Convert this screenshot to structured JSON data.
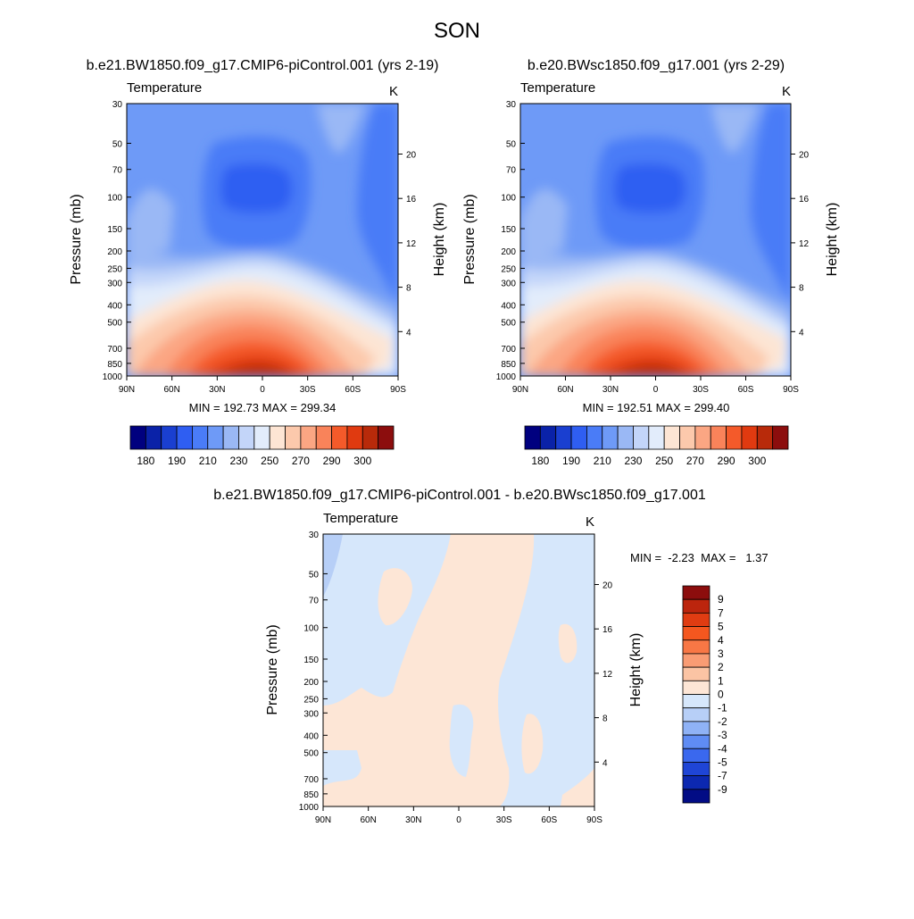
{
  "chart_data": {
    "main_title": "SON",
    "panels": [
      {
        "type": "contour",
        "title": "b.e21.BW1850.f09_g17.CMIP6-piControl.001 (yrs 2-19)",
        "variable": "Temperature",
        "units": "K",
        "ylabel_left": "Pressure (mb)",
        "ylabel_right": "Height (km)",
        "x_ticks": [
          "90N",
          "60N",
          "30N",
          "0",
          "30S",
          "60S",
          "90S"
        ],
        "pressure_ticks": [
          "30",
          "50",
          "70",
          "100",
          "150",
          "200",
          "250",
          "300",
          "400",
          "500",
          "700",
          "850",
          "1000"
        ],
        "height_ticks": [
          "4",
          "8",
          "12",
          "16",
          "20"
        ],
        "stats": "MIN = 192.73  MAX = 299.34",
        "min": 192.73,
        "max": 299.34,
        "colorbar_ticks": [
          "180",
          "190",
          "210",
          "230",
          "250",
          "270",
          "290",
          "300"
        ]
      },
      {
        "type": "contour",
        "title": "b.e20.BWsc1850.f09_g17.001 (yrs 2-29)",
        "variable": "Temperature",
        "units": "K",
        "ylabel_left": "Pressure (mb)",
        "ylabel_right": "Height (km)",
        "x_ticks": [
          "90N",
          "60N",
          "30N",
          "0",
          "30S",
          "60S",
          "90S"
        ],
        "pressure_ticks": [
          "30",
          "50",
          "70",
          "100",
          "150",
          "200",
          "250",
          "300",
          "400",
          "500",
          "700",
          "850",
          "1000"
        ],
        "height_ticks": [
          "4",
          "8",
          "12",
          "16",
          "20"
        ],
        "stats": "MIN = 192.51  MAX = 299.40",
        "min": 192.51,
        "max": 299.4,
        "colorbar_ticks": [
          "180",
          "190",
          "210",
          "230",
          "250",
          "270",
          "290",
          "300"
        ]
      },
      {
        "type": "contour",
        "title": "b.e21.BW1850.f09_g17.CMIP6-piControl.001 - b.e20.BWsc1850.f09_g17.001",
        "variable": "Temperature",
        "units": "K",
        "ylabel_left": "Pressure (mb)",
        "ylabel_right": "Height (km)",
        "x_ticks": [
          "90N",
          "60N",
          "30N",
          "0",
          "30S",
          "60S",
          "90S"
        ],
        "pressure_ticks": [
          "30",
          "50",
          "70",
          "100",
          "150",
          "200",
          "250",
          "300",
          "400",
          "500",
          "700",
          "850",
          "1000"
        ],
        "height_ticks": [
          "4",
          "8",
          "12",
          "16",
          "20"
        ],
        "stats": "MIN =  -2.23  MAX =   1.37",
        "min": -2.23,
        "max": 1.37,
        "colorbar_ticks": [
          "9",
          "7",
          "5",
          "4",
          "3",
          "2",
          "1",
          "0",
          "-1",
          "-2",
          "-3",
          "-4",
          "-5",
          "-7",
          "-9"
        ]
      }
    ],
    "abs_colors": [
      "#00007f",
      "#0a22a8",
      "#1a3fd0",
      "#2f5ef2",
      "#4a7cf7",
      "#6e9af7",
      "#9ab8f5",
      "#c3d5f9",
      "#e2ecfb",
      "#fde5d4",
      "#fcc9ac",
      "#fba683",
      "#f9835a",
      "#f45a2a",
      "#e03a10",
      "#b82a0a",
      "#8c0d0d"
    ],
    "diff_colors": [
      "#8c0d0d",
      "#bc250d",
      "#e03c12",
      "#f4571f",
      "#f87745",
      "#f99c74",
      "#fbc4a4",
      "#fde6d6",
      "#d6e7fb",
      "#b7cff7",
      "#8fb2f6",
      "#5f8cf4",
      "#3a68ee",
      "#1f45d6",
      "#0c28b0",
      "#020c85"
    ]
  }
}
